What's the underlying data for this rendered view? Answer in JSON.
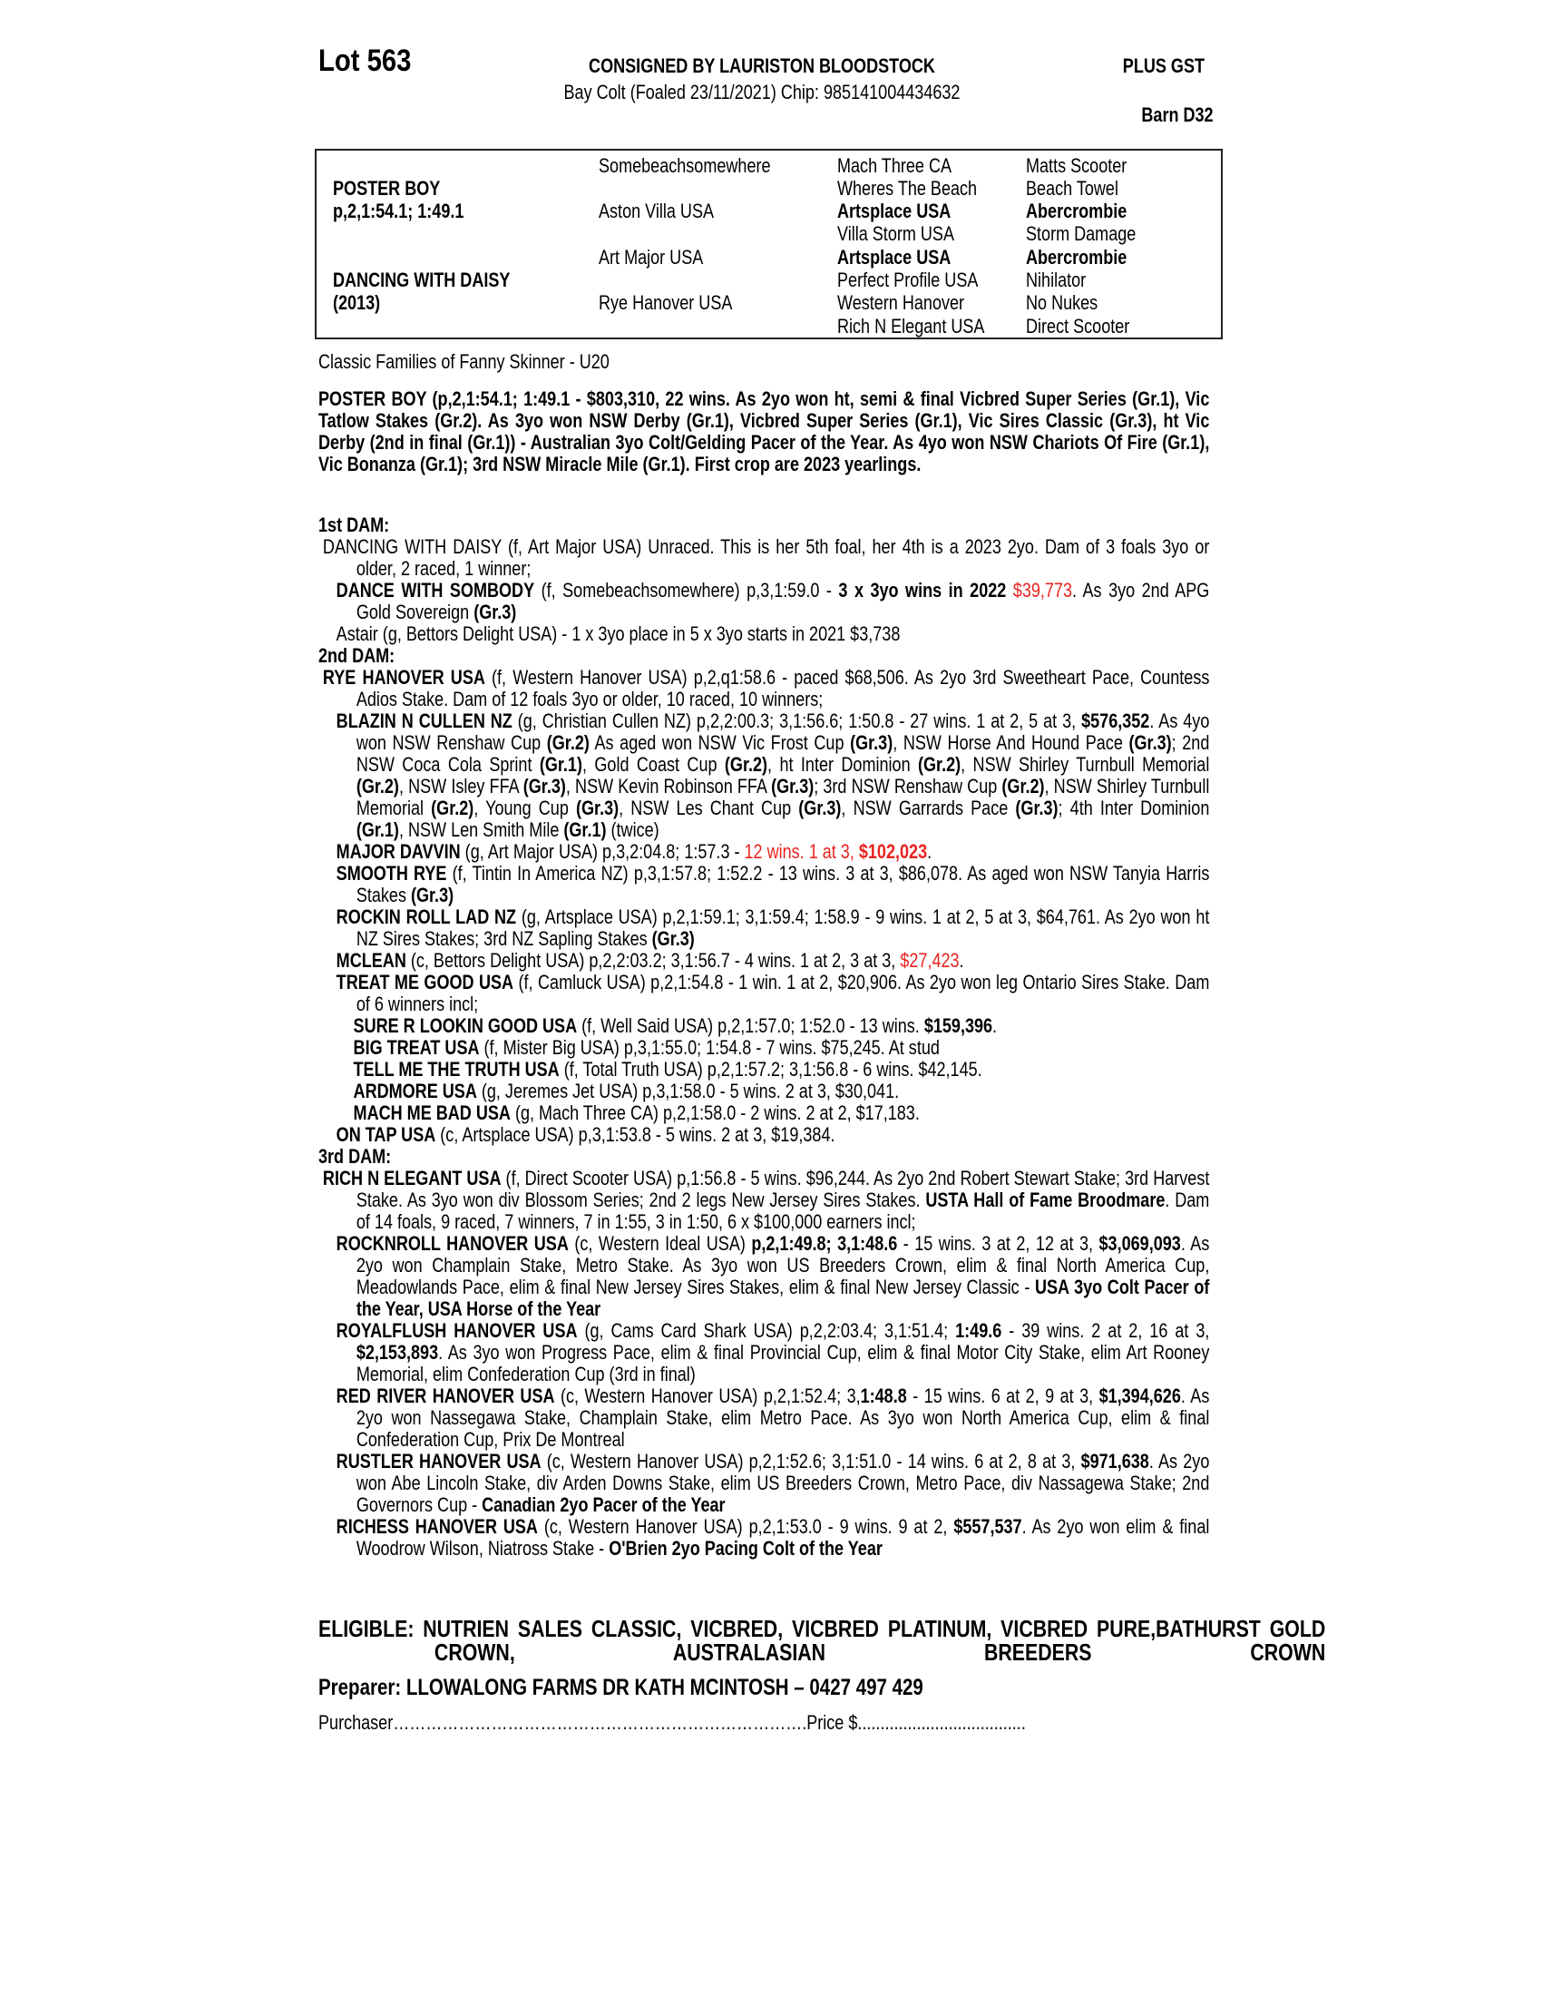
{
  "header": {
    "lot": "Lot 563",
    "consigned": "CONSIGNED BY LAURISTON BLOODSTOCK",
    "description": "Bay Colt (Foaled 23/11/2021) Chip: 985141004434632",
    "gst": "PLUS GST",
    "barn": "Barn D32"
  },
  "pedigree": {
    "sire_name": "POSTER BOY",
    "sire_record": "p,2,1:54.1; 1:49.1",
    "dam_name": "DANCING WITH DAISY",
    "dam_year": "(2013)",
    "gen2": [
      "Somebeachsomewhere",
      "Aston Villa USA",
      "Art Major USA",
      "Rye Hanover USA"
    ],
    "gen3": [
      {
        "t": "Mach Three CA",
        "b": false
      },
      {
        "t": "Wheres The Beach",
        "b": false
      },
      {
        "t": "Artsplace USA",
        "b": true
      },
      {
        "t": "Villa Storm USA",
        "b": false
      },
      {
        "t": "Artsplace USA",
        "b": true
      },
      {
        "t": "Perfect Profile USA",
        "b": false
      },
      {
        "t": "Western Hanover",
        "b": false
      },
      {
        "t": "Rich N Elegant USA",
        "b": false
      }
    ],
    "gen4": [
      {
        "t": "Matts Scooter",
        "b": false
      },
      {
        "t": "Beach Towel",
        "b": false
      },
      {
        "t": "Abercrombie",
        "b": true
      },
      {
        "t": "Storm Damage",
        "b": false
      },
      {
        "t": "Abercrombie",
        "b": true
      },
      {
        "t": "Nihilator",
        "b": false
      },
      {
        "t": "No Nukes",
        "b": false
      },
      {
        "t": "Direct Scooter",
        "b": false
      }
    ]
  },
  "family": "Classic Families of Fanny Skinner - U20",
  "sire_para": "POSTER BOY (p,2,1:54.1; 1:49.1 - $803,310, 22 wins. As 2yo won ht, semi & final Vicbred Super Series (Gr.1), Vic Tatlow Stakes (Gr.2). As 3yo won NSW Derby (Gr.1), Vicbred Super Series (Gr.1), Vic Sires Classic (Gr.3), ht Vic Derby (2nd in final (Gr.1)) - Australian 3yo Colt/Gelding Pacer of the Year. As 4yo won NSW Chariots Of Fire (Gr.1), Vic Bonanza (Gr.1); 3rd NSW Miracle Mile (Gr.1). First crop are 2023 yearlings.",
  "colors": {
    "highlight": "#e8231f"
  },
  "dams": [
    {
      "heading": "1st DAM:",
      "paras": [
        {
          "level": "dam",
          "segs": [
            {
              "t": "DANCING WITH DAISY (f, Art Major USA) Unraced. This is her 5th foal, her 4th is a 2023 2yo. Dam of 3 foals 3yo or older, 2 raced, 1 winner;"
            }
          ]
        },
        {
          "level": "prog",
          "segs": [
            {
              "t": "DANCE WITH SOMBODY",
              "s": "b"
            },
            {
              "t": " (f, Somebeachsomewhere) p,3,1:59.0 - "
            },
            {
              "t": "3 x 3yo wins in 2022",
              "s": "b"
            },
            {
              "t": " "
            },
            {
              "t": "$39,773",
              "s": "r"
            },
            {
              "t": ". As 3yo 2nd APG Gold Sovereign "
            },
            {
              "t": "(Gr.3)",
              "s": "b"
            }
          ]
        },
        {
          "level": "prog",
          "segs": [
            {
              "t": "Astair (g, Bettors Delight USA) - 1 x 3yo place in 5 x 3yo starts in 2021 $3,738"
            }
          ]
        }
      ]
    },
    {
      "heading": "2nd DAM:",
      "paras": [
        {
          "level": "dam",
          "segs": [
            {
              "t": "RYE HANOVER USA",
              "s": "b"
            },
            {
              "t": " (f, Western Hanover USA) p,2,q1:58.6 - paced $68,506. As 2yo 3rd Sweetheart Pace, Countess Adios Stake. Dam of 12 foals 3yo or older, 10 raced, 10 winners;"
            }
          ]
        },
        {
          "level": "prog",
          "segs": [
            {
              "t": "BLAZIN N CULLEN NZ",
              "s": "b"
            },
            {
              "t": " (g, Christian Cullen NZ) p,2,2:00.3; 3,1:56.6; 1:50.8 - 27 wins. 1 at 2, 5 at 3, "
            },
            {
              "t": "$576,352",
              "s": "b"
            },
            {
              "t": ". As 4yo won NSW Renshaw Cup "
            },
            {
              "t": "(Gr.2)",
              "s": "b"
            },
            {
              "t": " As aged won NSW Vic Frost Cup "
            },
            {
              "t": "(Gr.3)",
              "s": "b"
            },
            {
              "t": ", NSW Horse And Hound Pace "
            },
            {
              "t": "(Gr.3)",
              "s": "b"
            },
            {
              "t": "; 2nd NSW Coca Cola Sprint "
            },
            {
              "t": "(Gr.1)",
              "s": "b"
            },
            {
              "t": ", Gold Coast Cup "
            },
            {
              "t": "(Gr.2)",
              "s": "b"
            },
            {
              "t": ", ht Inter Dominion "
            },
            {
              "t": "(Gr.2)",
              "s": "b"
            },
            {
              "t": ", NSW Shirley Turnbull Memorial "
            },
            {
              "t": "(Gr.2)",
              "s": "b"
            },
            {
              "t": ", NSW Isley FFA "
            },
            {
              "t": "(Gr.3)",
              "s": "b"
            },
            {
              "t": ", NSW Kevin Robinson FFA "
            },
            {
              "t": "(Gr.3)",
              "s": "b"
            },
            {
              "t": "; 3rd NSW Renshaw Cup "
            },
            {
              "t": "(Gr.2)",
              "s": "b"
            },
            {
              "t": ", NSW Shirley Turnbull Memorial "
            },
            {
              "t": "(Gr.2)",
              "s": "b"
            },
            {
              "t": ", Young Cup "
            },
            {
              "t": "(Gr.3)",
              "s": "b"
            },
            {
              "t": ", NSW Les Chant Cup "
            },
            {
              "t": "(Gr.3)",
              "s": "b"
            },
            {
              "t": ", NSW Garrards Pace "
            },
            {
              "t": "(Gr.3)",
              "s": "b"
            },
            {
              "t": "; 4th Inter Dominion "
            },
            {
              "t": "(Gr.1)",
              "s": "b"
            },
            {
              "t": ", NSW Len Smith Mile "
            },
            {
              "t": "(Gr.1)",
              "s": "b"
            },
            {
              "t": " (twice)"
            }
          ]
        },
        {
          "level": "prog",
          "segs": [
            {
              "t": "MAJOR DAVVIN",
              "s": "b"
            },
            {
              "t": " (g, Art Major USA) p,3,2:04.8; 1:57.3 - "
            },
            {
              "t": "12 wins. 1 at 3, ",
              "s": "r"
            },
            {
              "t": "$102,023",
              "s": "rb"
            },
            {
              "t": "."
            }
          ]
        },
        {
          "level": "prog",
          "segs": [
            {
              "t": "SMOOTH RYE",
              "s": "b"
            },
            {
              "t": " (f, Tintin In America NZ) p,3,1:57.8; 1:52.2 - 13 wins. 3 at 3, $86,078. As aged won NSW Tanyia Harris Stakes "
            },
            {
              "t": "(Gr.3)",
              "s": "b"
            }
          ]
        },
        {
          "level": "prog",
          "segs": [
            {
              "t": "ROCKIN ROLL LAD NZ",
              "s": "b"
            },
            {
              "t": " (g, Artsplace USA) p,2,1:59.1; 3,1:59.4; 1:58.9 - 9 wins. 1 at 2, 5 at 3, $64,761. As 2yo won ht NZ Sires Stakes; 3rd NZ Sapling Stakes "
            },
            {
              "t": "(Gr.3)",
              "s": "b"
            }
          ]
        },
        {
          "level": "prog",
          "segs": [
            {
              "t": "MCLEAN",
              "s": "b"
            },
            {
              "t": " (c, Bettors Delight USA) p,2,2:03.2; 3,1:56.7 - 4 wins. 1 at 2, 3 at 3, "
            },
            {
              "t": "$27,423",
              "s": "r"
            },
            {
              "t": "."
            }
          ]
        },
        {
          "level": "prog",
          "segs": [
            {
              "t": "TREAT ME GOOD USA",
              "s": "b"
            },
            {
              "t": " (f, Camluck USA) p,2,1:54.8 - 1 win. 1 at 2, $20,906. As 2yo won leg Ontario Sires Stake. Dam of 6 winners incl;"
            }
          ]
        },
        {
          "level": "grand",
          "segs": [
            {
              "t": "SURE R LOOKIN GOOD USA",
              "s": "b"
            },
            {
              "t": " (f, Well Said USA) p,2,1:57.0; 1:52.0 - 13 wins. "
            },
            {
              "t": "$159,396",
              "s": "b"
            },
            {
              "t": "."
            }
          ]
        },
        {
          "level": "grand",
          "segs": [
            {
              "t": "BIG TREAT USA",
              "s": "b"
            },
            {
              "t": " (f, Mister Big USA) p,3,1:55.0; 1:54.8 - 7 wins. $75,245. At stud"
            }
          ]
        },
        {
          "level": "grand",
          "segs": [
            {
              "t": "TELL ME THE TRUTH USA",
              "s": "b"
            },
            {
              "t": " (f, Total Truth USA) p,2,1:57.2; 3,1:56.8 - 6 wins. $42,145."
            }
          ]
        },
        {
          "level": "grand",
          "segs": [
            {
              "t": "ARDMORE USA",
              "s": "b"
            },
            {
              "t": " (g, Jeremes Jet USA) p,3,1:58.0 - 5 wins. 2 at 3, $30,041."
            }
          ]
        },
        {
          "level": "grand",
          "segs": [
            {
              "t": "MACH ME BAD USA",
              "s": "b"
            },
            {
              "t": " (g, Mach Three CA) p,2,1:58.0 - 2 wins. 2 at 2, $17,183."
            }
          ]
        },
        {
          "level": "prog",
          "segs": [
            {
              "t": "ON TAP USA",
              "s": "b"
            },
            {
              "t": " (c, Artsplace USA) p,3,1:53.8 - 5 wins. 2 at 3, $19,384."
            }
          ]
        }
      ]
    },
    {
      "heading": "3rd DAM:",
      "paras": [
        {
          "level": "dam",
          "segs": [
            {
              "t": "RICH N ELEGANT USA",
              "s": "b"
            },
            {
              "t": " (f, Direct Scooter USA) p,1:56.8 - 5 wins. $96,244. As 2yo 2nd Robert Stewart Stake; 3rd Harvest Stake. As 3yo won div Blossom Series; 2nd 2 legs New Jersey Sires Stakes. "
            },
            {
              "t": "USTA Hall of Fame Broodmare",
              "s": "b"
            },
            {
              "t": ". Dam of 14 foals, 9 raced, 7 winners, 7 in 1:55, 3 in 1:50, 6 x $100,000 earners incl;"
            }
          ]
        },
        {
          "level": "prog",
          "segs": [
            {
              "t": "ROCKNROLL HANOVER USA",
              "s": "b"
            },
            {
              "t": " (c, Western Ideal USA) "
            },
            {
              "t": "p,2,1:49.8; 3,1:48.6",
              "s": "b"
            },
            {
              "t": " - 15 wins. 3 at 2, 12 at 3, "
            },
            {
              "t": "$3,069,093",
              "s": "b"
            },
            {
              "t": ". As 2yo won Champlain Stake, Metro Stake. As 3yo won US Breeders Crown, elim & final North America Cup, Meadowlands Pace, elim & final New Jersey Sires Stakes, elim & final New Jersey Classic - "
            },
            {
              "t": "USA 3yo Colt Pacer of the Year, USA Horse of the Year",
              "s": "b"
            }
          ]
        },
        {
          "level": "prog",
          "segs": [
            {
              "t": "ROYALFLUSH HANOVER USA",
              "s": "b"
            },
            {
              "t": " (g, Cams Card Shark USA) p,2,2:03.4; 3,1:51.4; "
            },
            {
              "t": "1:49.6",
              "s": "b"
            },
            {
              "t": " - 39 wins. 2 at 2, 16 at 3, "
            },
            {
              "t": "$2,153,893",
              "s": "b"
            },
            {
              "t": ". As 3yo won Progress Pace, elim & final Provincial Cup, elim & final Motor City Stake, elim Art Rooney Memorial, elim Confederation Cup (3rd in final)"
            }
          ]
        },
        {
          "level": "prog",
          "segs": [
            {
              "t": "RED RIVER HANOVER USA",
              "s": "b"
            },
            {
              "t": " (c, Western Hanover USA) p,2,1:52.4; 3,"
            },
            {
              "t": "1:48.8",
              "s": "b"
            },
            {
              "t": " - 15 wins. 6 at 2, 9 at 3, "
            },
            {
              "t": "$1,394,626",
              "s": "b"
            },
            {
              "t": ". As 2yo won Nassegawa Stake, Champlain Stake, elim Metro Pace. As 3yo won North America Cup, elim & final Confederation Cup, Prix De Montreal"
            }
          ]
        },
        {
          "level": "prog",
          "segs": [
            {
              "t": "RUSTLER HANOVER USA",
              "s": "b"
            },
            {
              "t": " (c, Western Hanover USA) p,2,1:52.6; 3,1:51.0 - 14 wins. 6 at 2, 8 at 3, "
            },
            {
              "t": "$971,638",
              "s": "b"
            },
            {
              "t": ". As 2yo won Abe Lincoln Stake, div Arden Downs Stake, elim US Breeders Crown, Metro Pace, div Nassagewa Stake; 2nd Governors Cup - "
            },
            {
              "t": "Canadian 2yo Pacer of the Year",
              "s": "b"
            }
          ]
        },
        {
          "level": "prog",
          "segs": [
            {
              "t": "RICHESS HANOVER USA",
              "s": "b"
            },
            {
              "t": " (c, Western Hanover USA) p,2,1:53.0 - 9 wins. 9 at 2, "
            },
            {
              "t": "$557,537",
              "s": "b"
            },
            {
              "t": ". As 2yo won elim & final Woodrow Wilson, Niatross Stake - "
            },
            {
              "t": "O'Brien 2yo Pacing Colt of the Year",
              "s": "b"
            }
          ]
        }
      ]
    }
  ],
  "footer": {
    "eligible": "ELIGIBLE: NUTRIEN SALES CLASSIC, VICBRED, VICBRED PLATINUM, VICBRED PURE,BATHURST GOLD CROWN, AUSTRALASIAN BREEDERS CROWN",
    "preparer": "Preparer: LLOWALONG FARMS DR KATH MCINTOSH – 0427 497 429",
    "purchaser_line": "Purchaser………………………………………………………………….Price $....................................."
  }
}
